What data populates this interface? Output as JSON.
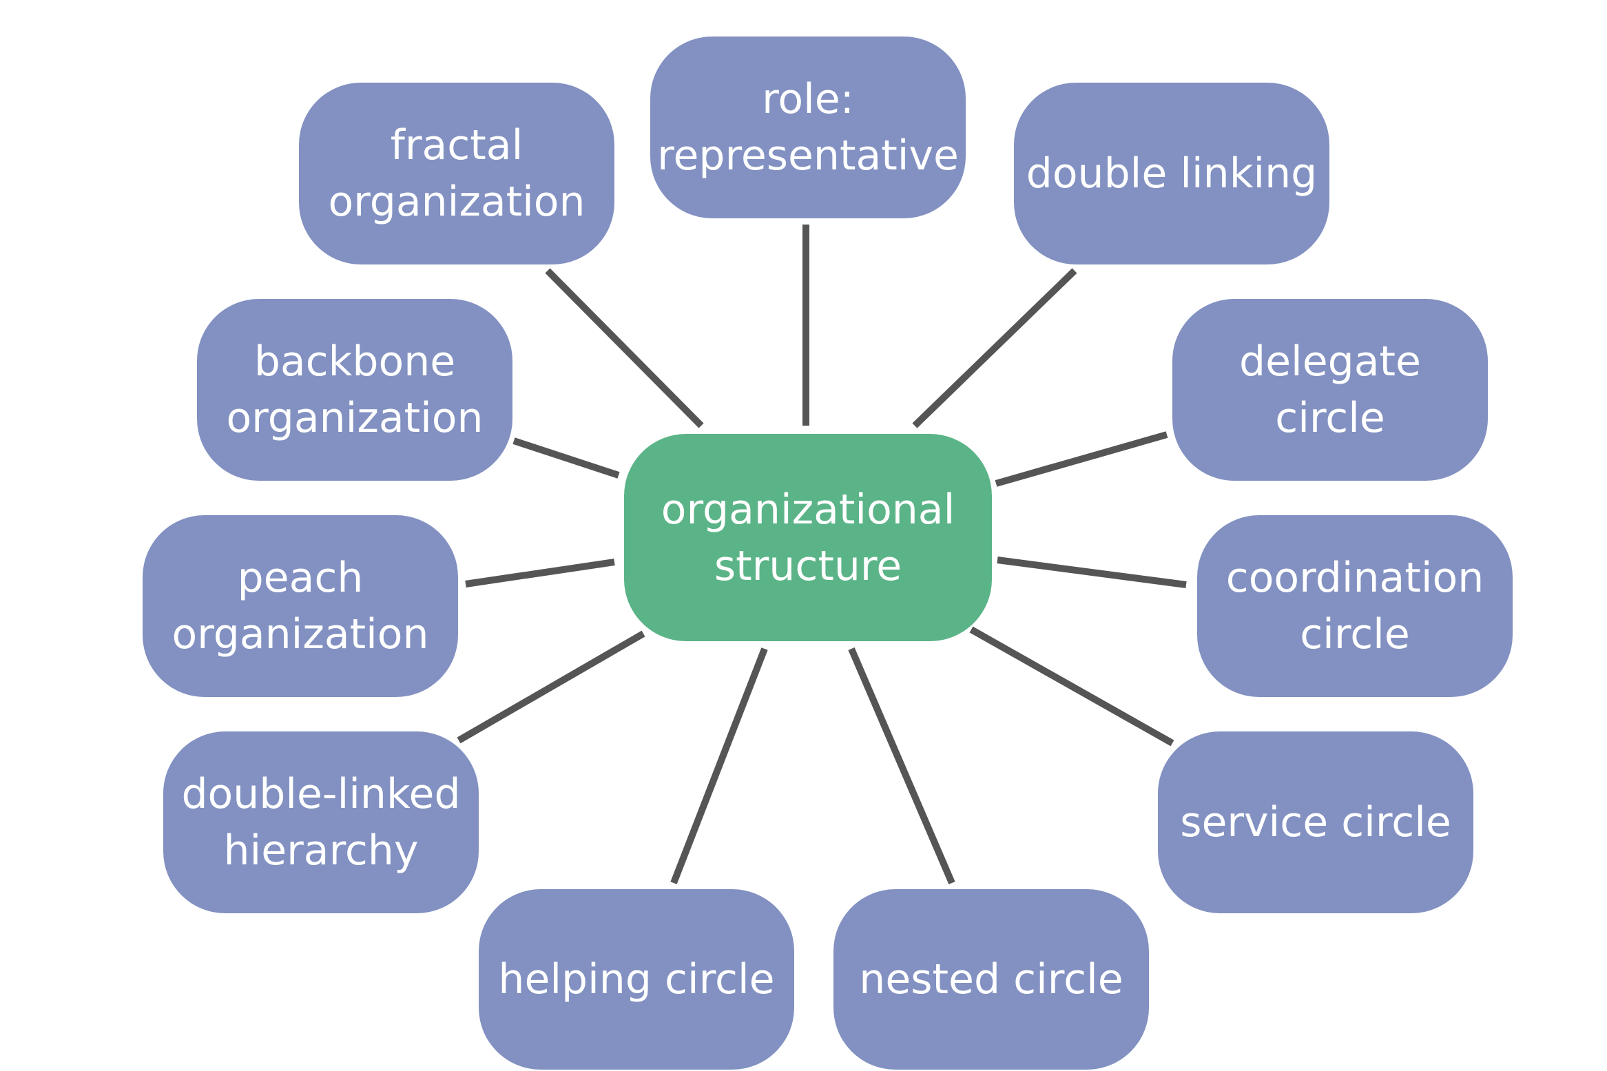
{
  "colors": {
    "center_fill": "#5ab487",
    "node_fill": "#8291c1",
    "connector": "#555555",
    "text": "#ffffff",
    "background": "#ffffff"
  },
  "center": {
    "label": "organizational\nstructure"
  },
  "nodes": [
    {
      "id": "fractal-organization",
      "label": "fractal\norganization"
    },
    {
      "id": "role-representative",
      "label": "role:\nrepresentative"
    },
    {
      "id": "double-linking",
      "label": "double linking"
    },
    {
      "id": "backbone-organization",
      "label": "backbone\norganization"
    },
    {
      "id": "delegate-circle",
      "label": "delegate circle"
    },
    {
      "id": "peach-organization",
      "label": "peach\norganization"
    },
    {
      "id": "coordination-circle",
      "label": "coordination\ncircle"
    },
    {
      "id": "double-linked-hierarchy",
      "label": "double-linked\nhierarchy"
    },
    {
      "id": "service-circle",
      "label": "service circle"
    },
    {
      "id": "helping-circle",
      "label": "helping circle"
    },
    {
      "id": "nested-circle",
      "label": "nested circle"
    }
  ]
}
